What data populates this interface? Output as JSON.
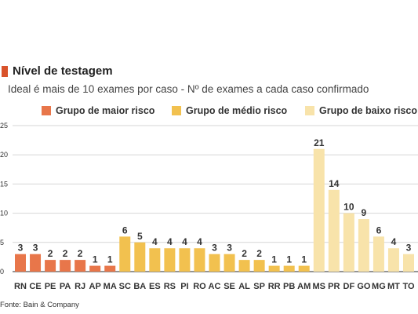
{
  "header": {
    "title": "Nível de testagem",
    "subtitle": "Ideal é mais de 10 exames por caso - Nº de exames a cada caso confirmado"
  },
  "colors": {
    "title_marker": "#d9532b",
    "high_risk": "#e8764a",
    "medium_risk": "#f2c14f",
    "low_risk": "#f8e3aa"
  },
  "source": "Fonte: Bain & Company",
  "chart_data": {
    "type": "bar",
    "title": "Nível de testagem",
    "subtitle": "Ideal é mais de 10 exames por caso - Nº de exames a cada caso confirmado",
    "xlabel": "",
    "ylabel": "",
    "ylim": [
      0,
      25
    ],
    "yticks": [
      0,
      5,
      10,
      15,
      20,
      25
    ],
    "grid": true,
    "legend_position": "top",
    "categories": [
      "RN",
      "CE",
      "PE",
      "PA",
      "RJ",
      "AP",
      "MA",
      "SC",
      "BA",
      "ES",
      "RS",
      "PI",
      "RO",
      "AC",
      "SE",
      "AL",
      "SP",
      "RR",
      "PB",
      "AM",
      "MS",
      "PR",
      "DF",
      "GO",
      "MG",
      "MT",
      "TO"
    ],
    "values": [
      3,
      3,
      2,
      2,
      2,
      1,
      1,
      6,
      5,
      4,
      4,
      4,
      4,
      3,
      3,
      2,
      2,
      1,
      1,
      1,
      21,
      14,
      10,
      9,
      6,
      4,
      3
    ],
    "groups": [
      "high",
      "high",
      "high",
      "high",
      "high",
      "high",
      "high",
      "medium",
      "medium",
      "medium",
      "medium",
      "medium",
      "medium",
      "medium",
      "medium",
      "medium",
      "medium",
      "medium",
      "medium",
      "medium",
      "low",
      "low",
      "low",
      "low",
      "low",
      "low",
      "low"
    ],
    "series": [
      {
        "key": "high",
        "name": "Grupo de maior risco",
        "color": "#e8764a"
      },
      {
        "key": "medium",
        "name": "Grupo de médio risco",
        "color": "#f2c14f"
      },
      {
        "key": "low",
        "name": "Grupo de baixo risco",
        "color": "#f8e3aa"
      }
    ]
  }
}
